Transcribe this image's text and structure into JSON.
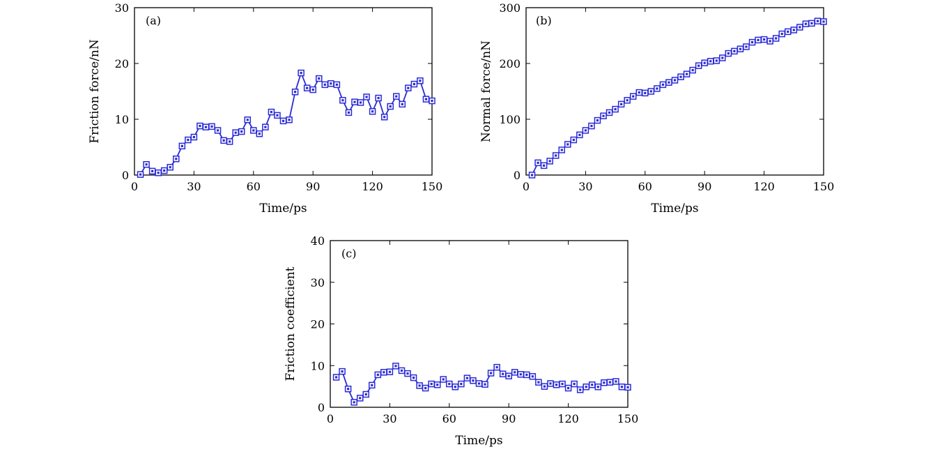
{
  "chart_data": [
    {
      "type": "line",
      "panel_label": "(a)",
      "xlabel": "Time/ps",
      "ylabel": "Friction force/nN",
      "xlim": [
        0,
        150
      ],
      "ylim": [
        0,
        30
      ],
      "xticks": [
        "0",
        "30",
        "60",
        "90",
        "120",
        "150"
      ],
      "yticks": [
        "0",
        "10",
        "20",
        "30"
      ],
      "marker": "square",
      "color": "#2a2ad6",
      "series": [
        {
          "x": [
            3,
            6,
            9,
            12,
            15,
            18,
            21,
            24,
            27,
            30,
            33,
            36,
            39,
            42,
            45,
            48,
            51,
            54,
            57,
            60,
            63,
            66,
            69,
            72,
            75,
            78,
            81,
            84,
            87,
            90,
            93,
            96,
            99,
            102,
            105,
            108,
            111,
            114,
            117,
            120,
            123,
            126,
            129,
            132,
            135,
            138,
            141,
            144,
            147,
            150
          ],
          "y": [
            0.1,
            1.9,
            0.7,
            0.4,
            0.8,
            1.4,
            2.9,
            5.2,
            6.3,
            6.8,
            8.8,
            8.6,
            8.7,
            8.0,
            6.2,
            6.0,
            7.6,
            7.8,
            9.9,
            8.0,
            7.4,
            8.6,
            11.3,
            10.7,
            9.7,
            9.9,
            14.9,
            18.3,
            15.6,
            15.3,
            17.3,
            16.2,
            16.4,
            16.2,
            13.4,
            11.2,
            13.1,
            13.0,
            14.0,
            11.4,
            13.8,
            10.4,
            12.3,
            14.1,
            12.7,
            15.6,
            16.3,
            16.9,
            13.6,
            13.3
          ]
        }
      ]
    },
    {
      "type": "line",
      "panel_label": "(b)",
      "xlabel": "Time/ps",
      "ylabel": "Normal force/nN",
      "xlim": [
        0,
        150
      ],
      "ylim": [
        0,
        300
      ],
      "xticks": [
        "0",
        "30",
        "60",
        "90",
        "120",
        "150"
      ],
      "yticks": [
        "0",
        "100",
        "200",
        "300"
      ],
      "marker": "square",
      "color": "#2a2ad6",
      "series": [
        {
          "x": [
            3,
            6,
            9,
            12,
            15,
            18,
            21,
            24,
            27,
            30,
            33,
            36,
            39,
            42,
            45,
            48,
            51,
            54,
            57,
            60,
            63,
            66,
            69,
            72,
            75,
            78,
            81,
            84,
            87,
            90,
            93,
            96,
            99,
            102,
            105,
            108,
            111,
            114,
            117,
            120,
            123,
            126,
            129,
            132,
            135,
            138,
            141,
            144,
            147,
            150
          ],
          "y": [
            0,
            22,
            17,
            25,
            35,
            45,
            55,
            63,
            72,
            80,
            88,
            98,
            106,
            112,
            118,
            127,
            134,
            141,
            148,
            147,
            150,
            155,
            162,
            166,
            170,
            176,
            181,
            188,
            196,
            201,
            204,
            205,
            210,
            218,
            222,
            226,
            230,
            238,
            242,
            243,
            240,
            245,
            253,
            257,
            260,
            265,
            271,
            272,
            276,
            275
          ]
        }
      ]
    },
    {
      "type": "line",
      "panel_label": "(c)",
      "xlabel": "Time/ps",
      "ylabel": "Friction coefficient",
      "xlim": [
        0,
        150
      ],
      "ylim": [
        0,
        40
      ],
      "xticks": [
        "0",
        "30",
        "60",
        "90",
        "120",
        "150"
      ],
      "yticks": [
        "0",
        "10",
        "20",
        "30",
        "40"
      ],
      "marker": "square",
      "color": "#2a2ad6",
      "series": [
        {
          "x": [
            3,
            6,
            9,
            12,
            15,
            18,
            21,
            24,
            27,
            30,
            33,
            36,
            39,
            42,
            45,
            48,
            51,
            54,
            57,
            60,
            63,
            66,
            69,
            72,
            75,
            78,
            81,
            84,
            87,
            90,
            93,
            96,
            99,
            102,
            105,
            108,
            111,
            114,
            117,
            120,
            123,
            126,
            129,
            132,
            135,
            138,
            141,
            144,
            147,
            150
          ],
          "y": [
            7.2,
            8.6,
            4.4,
            1.2,
            2.2,
            3.1,
            5.3,
            7.8,
            8.4,
            8.5,
            9.9,
            8.8,
            8.1,
            7.1,
            5.2,
            4.6,
            5.6,
            5.4,
            6.7,
            5.6,
            4.9,
            5.6,
            7.0,
            6.4,
            5.7,
            5.5,
            8.2,
            9.6,
            8.0,
            7.5,
            8.4,
            7.9,
            7.8,
            7.4,
            6.0,
            5.0,
            5.7,
            5.4,
            5.6,
            4.6,
            5.6,
            4.2,
            4.9,
            5.4,
            4.9,
            5.9,
            6.0,
            6.2,
            4.9,
            4.8
          ]
        }
      ]
    }
  ]
}
